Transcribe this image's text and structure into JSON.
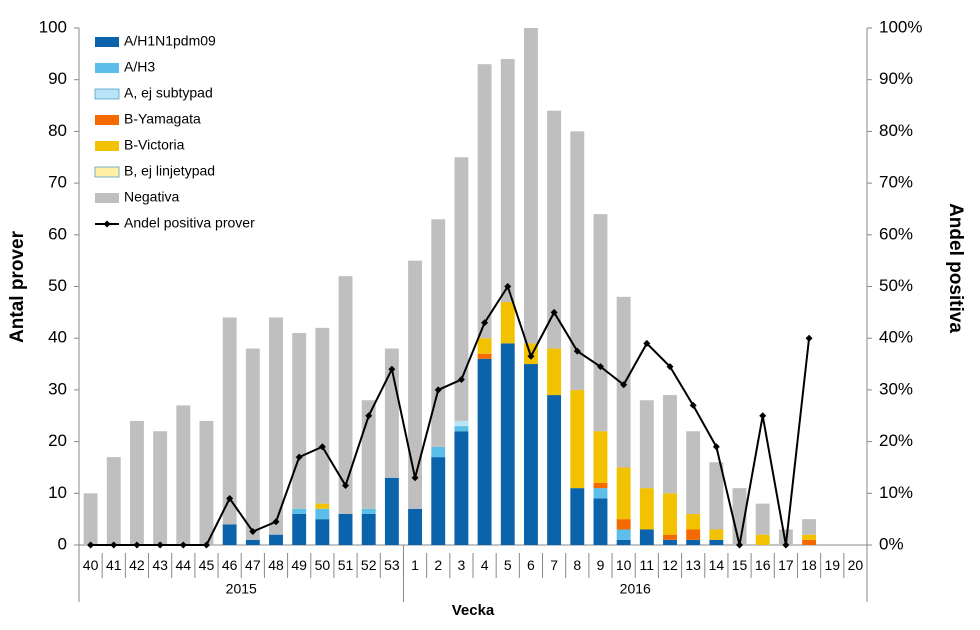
{
  "chart_data": {
    "type": "bar",
    "stacked": true,
    "x_label": "Vecka",
    "y_label": "Antal prover",
    "y2_label": "Andel positiva",
    "categories": [
      "40",
      "41",
      "42",
      "43",
      "44",
      "45",
      "46",
      "47",
      "48",
      "49",
      "50",
      "51",
      "52",
      "53",
      "1",
      "2",
      "3",
      "4",
      "5",
      "6",
      "7",
      "8",
      "9",
      "10",
      "11",
      "12",
      "13",
      "14",
      "15",
      "16",
      "17",
      "18",
      "19",
      "20"
    ],
    "x_groups": [
      "2015",
      "2016"
    ],
    "ylim": [
      0,
      100
    ],
    "yticks": [
      0,
      10,
      20,
      30,
      40,
      50,
      60,
      70,
      80,
      90,
      100
    ],
    "y2lim": [
      0,
      100
    ],
    "y2ticks": [
      {
        "value": 0,
        "label": "0%"
      },
      {
        "value": 10,
        "label": "10%"
      },
      {
        "value": 20,
        "label": "20%"
      },
      {
        "value": 30,
        "label": "30%"
      },
      {
        "value": 40,
        "label": "40%"
      },
      {
        "value": 50,
        "label": "50%"
      },
      {
        "value": 60,
        "label": "60%"
      },
      {
        "value": 70,
        "label": "70%"
      },
      {
        "value": 80,
        "label": "80%"
      },
      {
        "value": 90,
        "label": "90%"
      },
      {
        "value": 100,
        "label": "100%"
      }
    ],
    "grid": false,
    "legend": "top-left",
    "series": [
      {
        "name": "A/H1N1pdm09",
        "color": "#0b63ac",
        "values": [
          0,
          0,
          0,
          0,
          0,
          0,
          4,
          1,
          2,
          6,
          5,
          6,
          6,
          13,
          7,
          17,
          22,
          36,
          39,
          35,
          29,
          11,
          9,
          1,
          3,
          1,
          1,
          1,
          0,
          0,
          0,
          0,
          0,
          0
        ]
      },
      {
        "name": "A/H3",
        "color": "#5bbfea",
        "values": [
          0,
          0,
          0,
          0,
          0,
          0,
          0,
          0,
          0,
          1,
          2,
          0,
          1,
          0,
          0,
          2,
          1,
          0,
          0,
          0,
          0,
          0,
          2,
          2,
          0,
          0,
          0,
          0,
          0,
          0,
          0,
          0,
          0,
          0
        ]
      },
      {
        "name": "A, ej subtypad",
        "color": "#b7e5f7",
        "values": [
          0,
          0,
          0,
          0,
          0,
          0,
          0,
          0,
          0,
          0,
          0,
          0,
          0,
          0,
          0,
          0,
          1,
          0,
          0,
          0,
          0,
          0,
          0,
          0,
          0,
          0,
          0,
          0,
          0,
          0,
          0,
          0,
          0,
          0
        ]
      },
      {
        "name": "B-Yamagata",
        "color": "#f46a00",
        "values": [
          0,
          0,
          0,
          0,
          0,
          0,
          0,
          0,
          0,
          0,
          0,
          0,
          0,
          0,
          0,
          0,
          0,
          1,
          0,
          0,
          0,
          0,
          1,
          2,
          0,
          1,
          2,
          0,
          0,
          0,
          0,
          1,
          0,
          0
        ]
      },
      {
        "name": "B-Victoria",
        "color": "#f2c200",
        "values": [
          0,
          0,
          0,
          0,
          0,
          0,
          0,
          0,
          0,
          0,
          1,
          0,
          0,
          0,
          0,
          0,
          0,
          3,
          8,
          4,
          9,
          19,
          10,
          10,
          8,
          8,
          3,
          2,
          0,
          2,
          0,
          1,
          0,
          0
        ]
      },
      {
        "name": "B, ej linjetypad",
        "color": "#fff0a6",
        "values": [
          0,
          0,
          0,
          0,
          0,
          0,
          0,
          0,
          0,
          0,
          0,
          0,
          0,
          0,
          0,
          0,
          0,
          0,
          0,
          0,
          0,
          0,
          0,
          0,
          0,
          0,
          0,
          0,
          0,
          0,
          0,
          0,
          0,
          0
        ]
      },
      {
        "name": "Negativa",
        "color": "#bfbfbf",
        "values": [
          10,
          17,
          24,
          22,
          27,
          24,
          40,
          37,
          42,
          34,
          34,
          46,
          21,
          25,
          48,
          44,
          51,
          53,
          47,
          61,
          46,
          50,
          42,
          33,
          17,
          19,
          16,
          13,
          11,
          6,
          3,
          3,
          0,
          0
        ]
      },
      {
        "name": "Andel positiva prover",
        "color": "#000000",
        "type": "line",
        "axis": "y2",
        "values": [
          0,
          0,
          0,
          0,
          0,
          0,
          9,
          2.6,
          4.5,
          17,
          19,
          11.5,
          25,
          34,
          13,
          30,
          32,
          43,
          50,
          36.5,
          45,
          37.5,
          34.5,
          31,
          39,
          34.5,
          27,
          19,
          0,
          25,
          0,
          40,
          null,
          null
        ]
      }
    ]
  }
}
